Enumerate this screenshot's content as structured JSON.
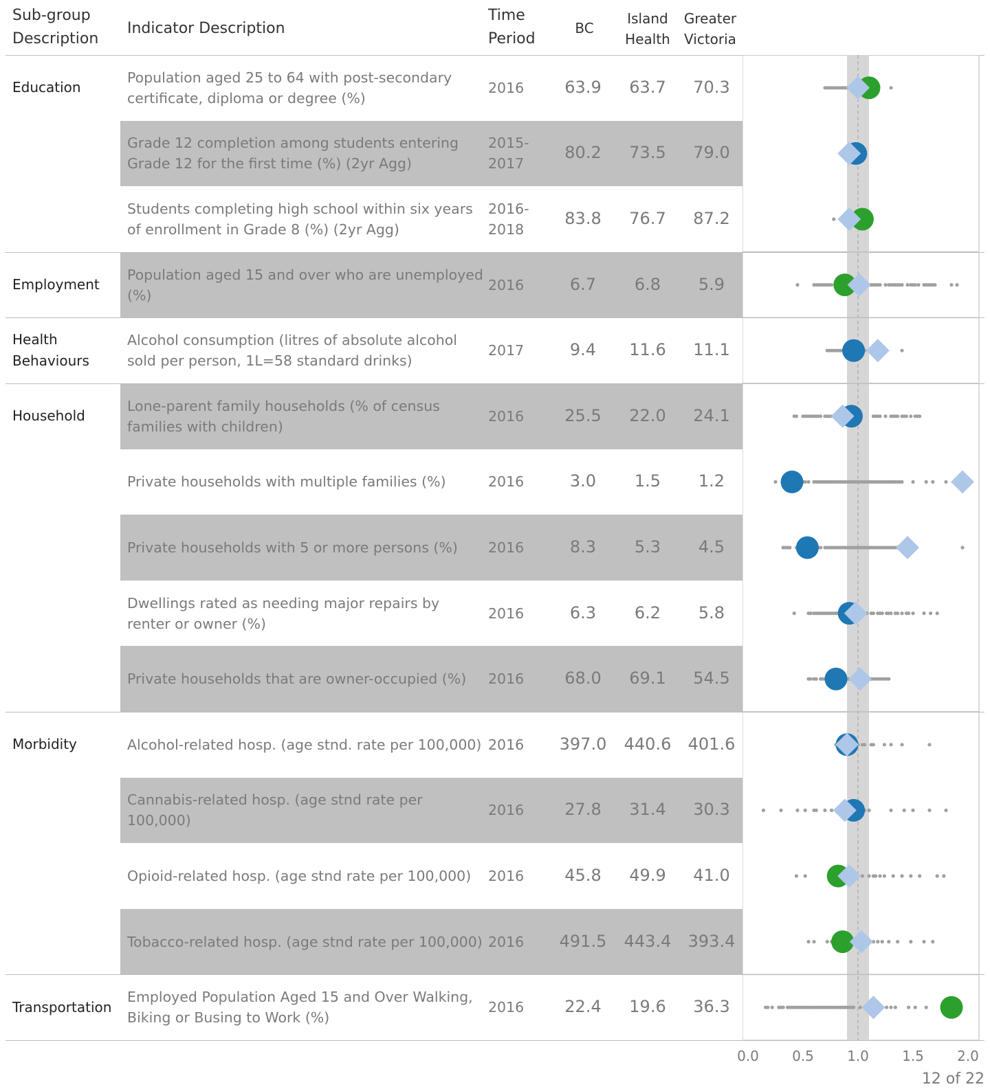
{
  "header": {
    "subgroup": [
      "Sub-group",
      "Description"
    ],
    "indicator": "Indicator Description",
    "period": [
      "Time",
      "Period"
    ],
    "bc": "BC",
    "island": [
      "Island",
      "Health"
    ],
    "victoria": [
      "Greater",
      "Victoria"
    ]
  },
  "rows": [
    {
      "group": [
        "Education"
      ],
      "indicator": [
        "Population aged 25 to 64 with post-secondary",
        "certificate, diploma or degree (%)"
      ],
      "period": [
        "2016"
      ],
      "bc": "63.9",
      "island": "63.7",
      "victoria": "70.3",
      "shaded": false
    },
    {
      "group": [],
      "indicator": [
        "Grade 12 completion among students entering",
        "Grade 12 for the first time (%) (2yr Agg)"
      ],
      "period": [
        "2015-",
        "2017"
      ],
      "bc": "80.2",
      "island": "73.5",
      "victoria": "79.0",
      "shaded": true
    },
    {
      "group": [],
      "indicator": [
        "Students completing high school within six years",
        "of enrollment in Grade 8 (%) (2yr Agg)"
      ],
      "period": [
        "2016-",
        "2018"
      ],
      "bc": "83.8",
      "island": "76.7",
      "victoria": "87.2",
      "shaded": false
    },
    {
      "group": [
        "Employment"
      ],
      "indicator": [
        "Population aged 15 and over who are unemployed",
        "(%)"
      ],
      "period": [
        "2016"
      ],
      "bc": "6.7",
      "island": "6.8",
      "victoria": "5.9",
      "shaded": true
    },
    {
      "group": [
        "Health",
        "Behaviours"
      ],
      "indicator": [
        "Alcohol consumption (litres of absolute alcohol",
        "sold per person, 1L=58 standard drinks)"
      ],
      "period": [
        "2017"
      ],
      "bc": "9.4",
      "island": "11.6",
      "victoria": "11.1",
      "shaded": false
    },
    {
      "group": [
        "Household"
      ],
      "indicator": [
        "Lone-parent family households (% of census",
        "families with children)"
      ],
      "period": [
        "2016"
      ],
      "bc": "25.5",
      "island": "22.0",
      "victoria": "24.1",
      "shaded": true
    },
    {
      "group": [],
      "indicator": [
        "Private households with multiple families (%)"
      ],
      "period": [
        "2016"
      ],
      "bc": "3.0",
      "island": "1.5",
      "victoria": "1.2",
      "shaded": false
    },
    {
      "group": [],
      "indicator": [
        "Private households with 5 or more persons (%)"
      ],
      "period": [
        "2016"
      ],
      "bc": "8.3",
      "island": "5.3",
      "victoria": "4.5",
      "shaded": true
    },
    {
      "group": [],
      "indicator": [
        "Dwellings rated as needing major repairs by",
        "renter or owner (%)"
      ],
      "period": [
        "2016"
      ],
      "bc": "6.3",
      "island": "6.2",
      "victoria": "5.8",
      "shaded": false
    },
    {
      "group": [],
      "indicator": [
        "Private households that are owner-occupied (%)"
      ],
      "period": [
        "2016"
      ],
      "bc": "68.0",
      "island": "69.1",
      "victoria": "54.5",
      "shaded": true
    },
    {
      "group": [
        "Morbidity"
      ],
      "indicator": [
        "Alcohol-related hosp. (age stnd. rate per 100,000)"
      ],
      "period": [
        "2016"
      ],
      "bc": "397.0",
      "island": "440.6",
      "victoria": "401.6",
      "shaded": false
    },
    {
      "group": [],
      "indicator": [
        "Cannabis-related hosp. (age stnd rate per",
        "100,000)"
      ],
      "period": [
        "2016"
      ],
      "bc": "27.8",
      "island": "31.4",
      "victoria": "30.3",
      "shaded": true
    },
    {
      "group": [],
      "indicator": [
        "Opioid-related hosp. (age stnd rate per 100,000)"
      ],
      "period": [
        "2016"
      ],
      "bc": "45.8",
      "island": "49.9",
      "victoria": "41.0",
      "shaded": false
    },
    {
      "group": [],
      "indicator": [
        "Tobacco-related hosp. (age stnd rate per 100,000)"
      ],
      "period": [
        "2016"
      ],
      "bc": "491.5",
      "island": "443.4",
      "victoria": "393.4",
      "shaded": true
    },
    {
      "group": [
        "Transportation"
      ],
      "indicator": [
        "Employed Population Aged 15 and Over Walking,",
        "Biking or Busing to Work (%)"
      ],
      "period": [
        "2016"
      ],
      "bc": "22.4",
      "island": "19.6",
      "victoria": "36.3",
      "shaded": false
    }
  ],
  "chart_data": {
    "type": "scatter",
    "x_ticks": [
      "0.0",
      "0.5",
      "1.0",
      "1.5",
      "2.0"
    ],
    "xlim": [
      0.0,
      2.0
    ],
    "reference_value": 1.0,
    "reference_band": [
      0.9,
      1.1
    ],
    "colors": {
      "victoria_high": "#2ca02c",
      "victoria_low": "#1f77b4",
      "island": "#aec7e8",
      "dots": "#a0a0a0",
      "band": "#d6d6d6"
    },
    "rows": [
      {
        "victoria": 1.1,
        "victoria_color": "victoria_high",
        "island": 1.0,
        "dots": [
          0.7,
          0.72,
          0.74,
          0.76,
          0.78,
          0.8,
          0.82,
          0.84,
          0.86,
          0.88,
          0.9,
          0.92,
          0.94,
          0.96,
          0.98,
          1.06,
          1.08,
          1.3
        ]
      },
      {
        "victoria": 0.98,
        "victoria_color": "victoria_low",
        "island": 0.92,
        "dots": [
          0.86,
          0.88,
          0.9,
          0.92,
          0.94,
          0.96,
          0.98,
          1.0
        ]
      },
      {
        "victoria": 1.04,
        "victoria_color": "victoria_high",
        "island": 0.92,
        "dots": [
          0.78,
          0.84,
          0.86,
          0.88,
          0.9,
          0.92,
          0.94,
          0.96,
          0.98,
          1.0,
          1.02
        ]
      },
      {
        "victoria": 0.88,
        "victoria_color": "victoria_high",
        "island": 1.01,
        "dots": [
          0.45,
          0.6,
          0.62,
          0.64,
          0.66,
          0.68,
          0.7,
          0.72,
          0.74,
          0.76,
          0.82,
          0.84,
          1.06,
          1.08,
          1.1,
          1.12,
          1.14,
          1.16,
          1.18,
          1.2,
          1.25,
          1.28,
          1.3,
          1.32,
          1.34,
          1.36,
          1.38,
          1.4,
          1.45,
          1.48,
          1.5,
          1.52,
          1.55,
          1.6,
          1.62,
          1.64,
          1.66,
          1.68,
          1.7,
          1.85,
          1.9
        ]
      },
      {
        "victoria": 0.96,
        "victoria_color": "victoria_low",
        "island": 1.18,
        "dots": [
          0.72,
          0.74,
          0.76,
          0.78,
          0.8,
          0.82,
          0.84,
          0.86,
          0.88,
          0.9,
          0.92,
          0.94,
          1.06,
          1.12,
          1.14,
          1.16,
          1.18,
          1.4
        ]
      },
      {
        "victoria": 0.94,
        "victoria_color": "victoria_low",
        "island": 0.86,
        "dots": [
          0.42,
          0.44,
          0.5,
          0.52,
          0.54,
          0.56,
          0.58,
          0.6,
          0.62,
          0.64,
          0.66,
          0.7,
          0.72,
          0.74,
          0.76,
          0.78,
          0.8,
          1.14,
          1.16,
          1.18,
          1.2,
          1.25,
          1.3,
          1.32,
          1.34,
          1.36,
          1.4,
          1.42,
          1.44,
          1.48,
          1.52,
          1.54,
          1.56
        ]
      },
      {
        "victoria": 0.4,
        "victoria_color": "victoria_low",
        "island": 1.95,
        "dots": [
          0.25,
          0.32,
          0.34,
          0.36,
          0.38,
          0.4,
          0.42,
          0.45,
          0.5,
          0.52,
          0.55,
          0.6,
          0.62,
          0.64,
          0.66,
          0.68,
          0.7,
          0.72,
          0.74,
          0.76,
          0.78,
          0.8,
          0.82,
          0.84,
          0.86,
          0.88,
          0.9,
          0.92,
          0.94,
          0.96,
          0.98,
          1.0,
          1.02,
          1.04,
          1.06,
          1.08,
          1.1,
          1.12,
          1.14,
          1.16,
          1.18,
          1.2,
          1.22,
          1.24,
          1.26,
          1.28,
          1.3,
          1.32,
          1.34,
          1.36,
          1.38,
          1.4,
          1.5,
          1.62,
          1.68,
          1.8
        ]
      },
      {
        "victoria": 0.54,
        "victoria_color": "victoria_low",
        "island": 1.45,
        "dots": [
          0.32,
          0.34,
          0.36,
          0.38,
          0.44,
          0.5,
          0.52,
          0.6,
          0.62,
          0.64,
          0.66,
          0.7,
          0.72,
          0.74,
          0.76,
          0.78,
          0.8,
          0.82,
          0.84,
          0.86,
          0.88,
          0.9,
          0.92,
          0.94,
          0.96,
          0.98,
          1.0,
          1.02,
          1.04,
          1.06,
          1.08,
          1.1,
          1.12,
          1.14,
          1.16,
          1.18,
          1.2,
          1.22,
          1.24,
          1.26,
          1.28,
          1.3,
          1.32,
          1.34,
          1.36,
          1.38,
          1.4,
          1.95
        ]
      },
      {
        "victoria": 0.92,
        "victoria_color": "victoria_low",
        "island": 0.98,
        "dots": [
          0.42,
          0.55,
          0.57,
          0.6,
          0.62,
          0.64,
          0.66,
          0.68,
          0.7,
          0.72,
          0.74,
          0.76,
          0.78,
          0.8,
          0.82,
          0.84,
          0.86,
          0.88,
          0.9,
          1.02,
          1.04,
          1.06,
          1.08,
          1.12,
          1.14,
          1.18,
          1.2,
          1.22,
          1.26,
          1.28,
          1.3,
          1.34,
          1.36,
          1.4,
          1.44,
          1.46,
          1.5,
          1.6,
          1.66,
          1.72
        ]
      },
      {
        "victoria": 0.8,
        "victoria_color": "victoria_low",
        "island": 1.02,
        "dots": [
          0.55,
          0.57,
          0.6,
          0.62,
          0.66,
          0.68,
          0.7,
          0.72,
          0.74,
          0.76,
          0.78,
          0.8,
          0.82,
          0.84,
          0.86,
          0.88,
          0.9,
          0.92,
          0.94,
          0.96,
          0.98,
          1.04,
          1.06,
          1.08,
          1.1,
          1.12,
          1.14,
          1.16,
          1.18,
          1.2,
          1.22,
          1.24,
          1.26,
          1.28
        ]
      },
      {
        "victoria": 0.9,
        "victoria_color": "victoria_low",
        "island": 0.9,
        "dots": [
          0.8,
          0.82,
          0.84,
          0.86,
          0.88,
          0.9,
          0.92,
          0.94,
          0.96,
          0.98,
          1.0,
          1.04,
          1.06,
          1.12,
          1.14,
          1.24,
          1.3,
          1.4,
          1.65
        ]
      },
      {
        "victoria": 0.96,
        "victoria_color": "victoria_low",
        "island": 0.88,
        "dots": [
          0.14,
          0.3,
          0.45,
          0.52,
          0.6,
          0.62,
          0.7,
          0.76,
          0.84,
          0.86,
          0.88,
          0.9,
          0.92,
          0.94,
          0.96,
          0.98,
          1.0,
          1.06,
          1.1,
          1.3,
          1.42,
          1.5,
          1.65,
          1.8
        ]
      },
      {
        "victoria": 0.82,
        "victoria_color": "victoria_high",
        "island": 0.92,
        "dots": [
          0.44,
          0.52,
          0.84,
          0.86,
          0.88,
          0.9,
          0.92,
          0.94,
          0.96,
          0.98,
          1.0,
          1.04,
          1.1,
          1.14,
          1.16,
          1.2,
          1.24,
          1.32,
          1.4,
          1.48,
          1.56,
          1.72,
          1.78
        ]
      },
      {
        "victoria": 0.86,
        "victoria_color": "victoria_high",
        "island": 1.03,
        "dots": [
          0.55,
          0.6,
          0.72,
          0.76,
          0.82,
          0.86,
          0.9,
          0.94,
          0.98,
          1.0,
          1.04,
          1.1,
          1.14,
          1.18,
          1.22,
          1.28,
          1.36,
          1.48,
          1.6,
          1.68
        ]
      },
      {
        "victoria": 1.85,
        "victoria_color": "victoria_high",
        "island": 1.14,
        "dots": [
          0.16,
          0.18,
          0.22,
          0.28,
          0.3,
          0.32,
          0.36,
          0.38,
          0.4,
          0.42,
          0.44,
          0.46,
          0.48,
          0.5,
          0.52,
          0.54,
          0.56,
          0.58,
          0.6,
          0.62,
          0.64,
          0.66,
          0.68,
          0.7,
          0.72,
          0.74,
          0.76,
          0.78,
          0.8,
          0.82,
          0.84,
          0.86,
          0.88,
          0.9,
          0.92,
          0.94,
          0.96,
          1.02,
          1.06,
          1.2,
          1.26,
          1.3,
          1.34,
          1.46,
          1.52,
          1.62
        ]
      }
    ]
  },
  "footer": {
    "pager": "12 of 22"
  }
}
